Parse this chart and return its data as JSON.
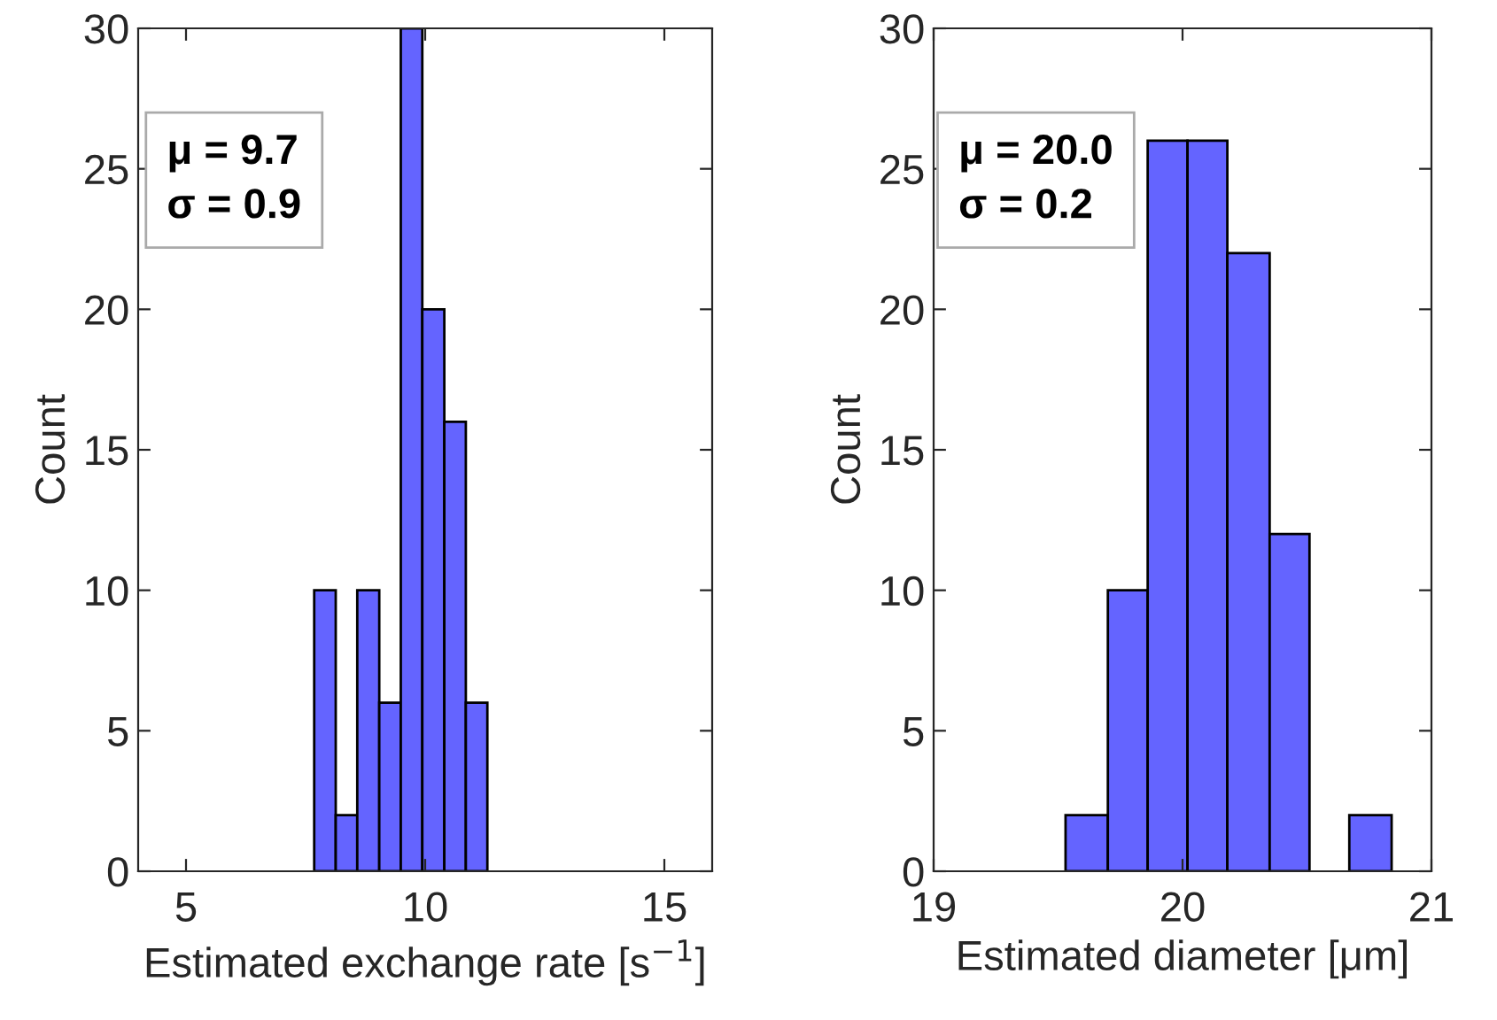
{
  "chart_data": [
    {
      "type": "histogram",
      "xlabel": "Estimated exchange rate [s$^{−1}$]",
      "ylabel": "Count",
      "annotations": [
        "μ = 9.7\nσ = 0.9"
      ],
      "bins": [
        7.68,
        8.13,
        8.58,
        9.04,
        9.49,
        9.94,
        10.4,
        10.85,
        11.3
      ],
      "values": [
        10,
        2,
        10,
        6,
        30,
        20,
        16,
        6
      ],
      "color": "#6464ff",
      "xlim": [
        4,
        16
      ],
      "xticks": [
        5,
        10,
        15
      ],
      "ylim": [
        0,
        30
      ],
      "yticks": [
        0,
        5,
        10,
        15,
        20,
        25,
        30
      ],
      "grid": false
    },
    {
      "type": "histogram",
      "xlabel": "Estimated diameter [μm]",
      "ylabel": "Count",
      "annotations": [
        "μ = 20.0\nσ = 0.2"
      ],
      "bins": [
        19.53,
        19.7,
        19.86,
        20.02,
        20.18,
        20.35,
        20.51,
        20.67,
        20.84
      ],
      "values": [
        2,
        10,
        26,
        26,
        22,
        12,
        0,
        2
      ],
      "color": "#6464ff",
      "xlim": [
        19,
        21
      ],
      "xticks": [
        19,
        20,
        21
      ],
      "ylim": [
        0,
        30
      ],
      "yticks": [
        0,
        5,
        10,
        15,
        20,
        25,
        30
      ],
      "grid": false
    }
  ]
}
